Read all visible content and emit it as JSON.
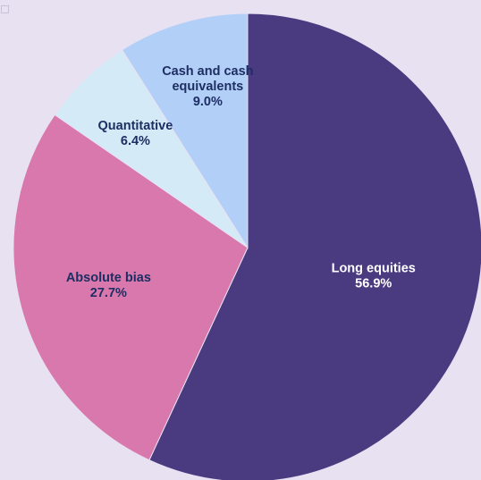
{
  "chart_data": {
    "type": "pie",
    "title": "",
    "start_angle_deg": 0,
    "direction": "clockwise",
    "slices": [
      {
        "label_lines": [
          "Long equities"
        ],
        "value": 56.9,
        "display_value": "56.9%",
        "color": "#4a3a80",
        "label_color": "#ffffff"
      },
      {
        "label_lines": [
          "Absolute bias"
        ],
        "value": 27.7,
        "display_value": "27.7%",
        "color": "#d978ad",
        "label_color": "#1d2e63"
      },
      {
        "label_lines": [
          "Quantitative"
        ],
        "value": 6.4,
        "display_value": "6.4%",
        "color": "#d4eaf6",
        "label_color": "#1d2e63"
      },
      {
        "label_lines": [
          "Cash and cash",
          "equivalents"
        ],
        "value": 9.0,
        "display_value": "9.0%",
        "color": "#b2cff8",
        "label_color": "#1d2e63"
      }
    ]
  }
}
